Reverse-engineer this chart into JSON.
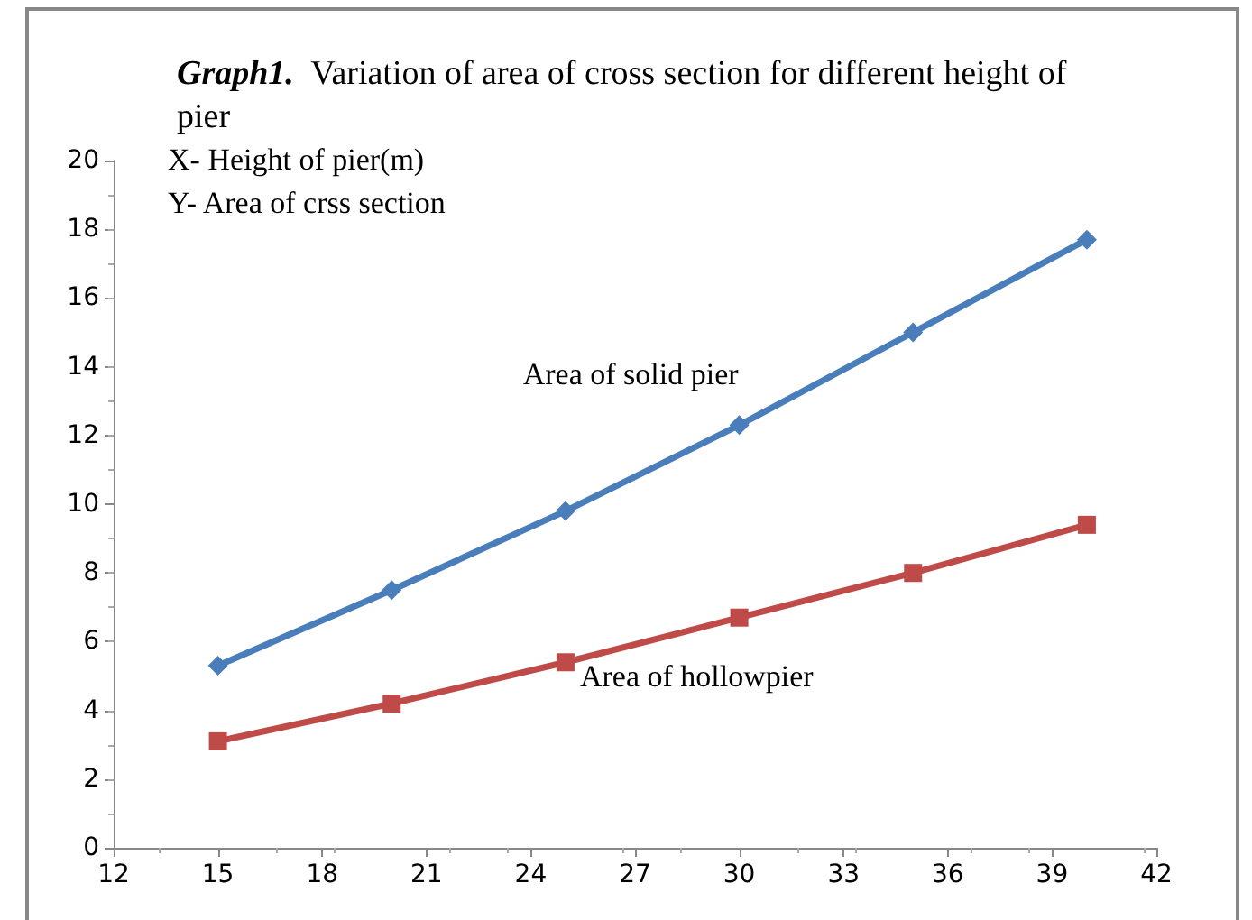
{
  "chart_data": {
    "type": "line",
    "title": "Graph1. Variation of area of cross section for different height of pier",
    "xlabel": "X- Height of pier(m)",
    "ylabel": "Y- Area of crss section",
    "x": [
      15,
      20,
      25,
      30,
      35,
      40
    ],
    "series": [
      {
        "name": "Area of solid pier",
        "color": "#4a7ebb",
        "marker": "diamond",
        "values": [
          5.3,
          7.5,
          9.8,
          12.3,
          15.0,
          17.7
        ]
      },
      {
        "name": "Area of hollowpier",
        "color": "#be4b48",
        "marker": "square",
        "values": [
          3.1,
          4.2,
          5.4,
          6.7,
          8.0,
          9.4
        ]
      }
    ],
    "xlim": [
      12,
      42
    ],
    "xticks": [
      12,
      15,
      18,
      21,
      24,
      27,
      30,
      33,
      36,
      39,
      42
    ],
    "ylim": [
      0,
      20
    ],
    "yticks": [
      0,
      2,
      4,
      6,
      8,
      10,
      12,
      14,
      16,
      18,
      20
    ],
    "grid": false,
    "legend": false,
    "line_style": "solid"
  }
}
